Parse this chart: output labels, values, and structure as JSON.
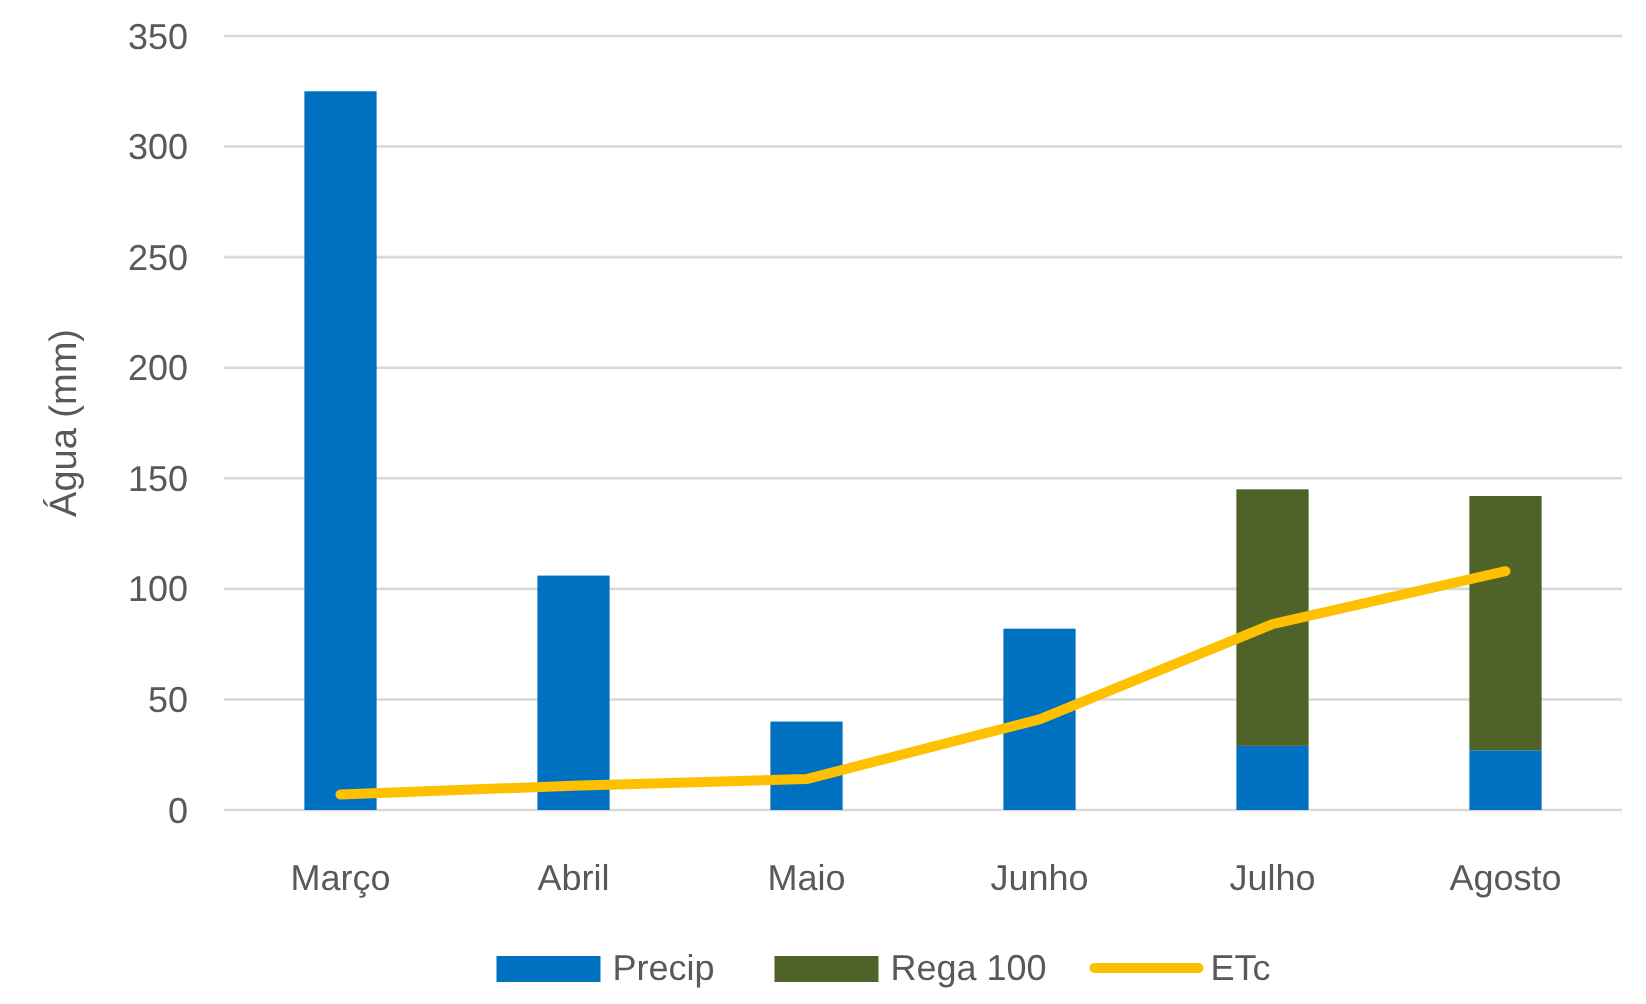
{
  "chart_data": {
    "type": "bar",
    "ylabel": "Água (mm)",
    "categories": [
      "Março",
      "Abril",
      "Maio",
      "Junho",
      "Julho",
      "Agosto"
    ],
    "stacked": true,
    "series": [
      {
        "name": "Precip",
        "color": "#0070c0",
        "values": [
          325,
          106,
          40,
          82,
          29,
          27
        ]
      },
      {
        "name": "Rega 100",
        "color": "#4f6228",
        "values": [
          null,
          null,
          null,
          null,
          116,
          115
        ]
      },
      {
        "name": "ETc",
        "type": "line",
        "color": "#ffc000",
        "values": [
          7,
          11,
          14,
          41,
          84,
          108
        ]
      }
    ],
    "ylim": [
      0,
      350
    ],
    "yticks": [
      0,
      50,
      100,
      150,
      200,
      250,
      300,
      350
    ],
    "grid": "y",
    "legend": "bottom",
    "line_style": "solid",
    "marker": "none"
  }
}
